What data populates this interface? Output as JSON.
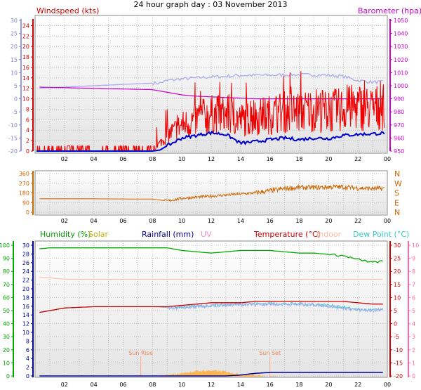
{
  "title": "24 hour graph day : 03 November 2013",
  "colors": {
    "windspeed": "#ee0000",
    "windspeed_avg": "#0000cc",
    "barometer": "#cc00cc",
    "winddir": "#cc6600",
    "humidity": "#00aa00",
    "solar": "#ffaa33",
    "rainfall": "#000099",
    "uv": "#ff99cc",
    "temperature": "#cc0000",
    "indoor": "#ffbb99",
    "dewpoint": "#33cccc",
    "grey_trace": "#aaaaee",
    "panel_bg": "#e4e4e4"
  },
  "time_ticks": [
    "02",
    "04",
    "06",
    "08",
    "10",
    "12",
    "14",
    "16",
    "18",
    "20",
    "22",
    "00"
  ],
  "chart_data": [
    {
      "type": "line",
      "name": "wind_and_pressure",
      "legend_left": "Windspeed (kts)",
      "legend_right": "Barometer (hpa)",
      "x_hours": [
        0,
        8,
        8.5,
        9,
        10,
        11,
        12,
        13,
        14,
        15,
        16,
        17,
        18,
        19,
        20,
        21,
        22,
        23,
        24
      ],
      "y_left_ticks": [
        "0",
        "2",
        "4",
        "6",
        "8",
        "10",
        "12",
        "14",
        "16",
        "18",
        "20",
        "22",
        "24"
      ],
      "y_left_outer_ticks": [
        "-20",
        "-15",
        "-10",
        "-5",
        "0",
        "5",
        "10",
        "15",
        "20",
        "25",
        "30"
      ],
      "y_right_ticks": [
        "950",
        "960",
        "970",
        "980",
        "990",
        "1000",
        "1010",
        "1020",
        "1030",
        "1040",
        "1050"
      ],
      "ylim_left": [
        0,
        25
      ],
      "ylim_right": [
        950,
        1050
      ],
      "series": [
        {
          "name": "Windspeed (kts)",
          "axis": "left",
          "values": [
            0.5,
            0.5,
            1.5,
            3,
            5,
            6,
            7,
            7,
            6,
            6.5,
            7,
            7.5,
            7.5,
            8,
            7.5,
            8,
            8.5,
            8,
            9
          ]
        },
        {
          "name": "Windspeed avg",
          "axis": "left",
          "values": [
            0,
            0,
            0.2,
            1,
            2.5,
            3,
            3.5,
            3.2,
            1.5,
            1.8,
            2.2,
            2.5,
            2.2,
            2.5,
            2.4,
            3,
            3.2,
            3.3,
            3.5
          ]
        },
        {
          "name": "Barometer (hpa)",
          "axis": "right",
          "values": [
            999,
            997,
            996,
            995,
            993,
            992,
            991.5,
            991,
            990.5,
            990,
            990,
            990,
            990,
            990,
            990,
            990,
            990,
            990,
            990
          ]
        },
        {
          "name": "Temperature trace",
          "axis": "left",
          "values": [
            12,
            13,
            13,
            13.5,
            13.8,
            14,
            14.2,
            14.3,
            14.5,
            14.5,
            14.5,
            14.6,
            14.6,
            14.6,
            14.5,
            14.3,
            13.5,
            13.2,
            13.2
          ]
        }
      ]
    },
    {
      "type": "scatter",
      "name": "wind_direction",
      "x_hours": [
        0,
        4,
        8,
        9,
        10,
        11,
        12,
        13,
        14,
        15,
        16,
        17,
        18,
        19,
        20,
        21,
        22,
        23,
        24
      ],
      "values": [
        125,
        125,
        122,
        105,
        130,
        140,
        150,
        160,
        170,
        180,
        200,
        220,
        230,
        230,
        235,
        235,
        225,
        220,
        220
      ],
      "y_ticks": [
        "0",
        "90",
        "180",
        "270",
        "360"
      ],
      "compass": [
        "N",
        "W",
        "S",
        "E",
        "N"
      ],
      "ylim": [
        0,
        360
      ]
    },
    {
      "type": "line",
      "name": "humidity_temperature_rain",
      "legend": [
        "Humidity (%)",
        "Solar",
        "Rainfall (mm)",
        "UV",
        "Temperature (°C)",
        "Indoor",
        "Dew Point (°C)"
      ],
      "sun_labels": [
        "Sun Rise",
        "Sun Set"
      ],
      "sunrise_hour": 7.2,
      "sunset_hour": 16.0,
      "x_hours": [
        0,
        1,
        2,
        4,
        6,
        8,
        9,
        10,
        11,
        12,
        13,
        14,
        15,
        16,
        17,
        18,
        19,
        20,
        21,
        22,
        23,
        24
      ],
      "y_humidity_ticks": [
        "0",
        "10",
        "20",
        "30",
        "40",
        "50",
        "60",
        "70",
        "80",
        "90",
        "100"
      ],
      "y_rain_ticks": [
        "0",
        "2",
        "4",
        "6",
        "8",
        "10",
        "12",
        "14",
        "16",
        "18",
        "20",
        "22",
        "24",
        "26",
        "28",
        "30"
      ],
      "y_temp_ticks": [
        "-20",
        "-15",
        "-10",
        "-5",
        "0",
        "5",
        "10",
        "15",
        "20",
        "25",
        "30"
      ],
      "y_uv_ticks": [
        "0",
        "1",
        "2",
        "3",
        "4",
        "5",
        "6",
        "7",
        "8",
        "9",
        "10"
      ],
      "series": [
        {
          "name": "Humidity (%)",
          "axis": "humidity",
          "values": [
            97,
            98,
            98,
            98,
            98,
            98,
            98,
            96,
            95,
            94,
            95,
            96,
            96,
            96,
            95,
            94,
            94,
            93,
            92,
            89,
            87,
            88
          ]
        },
        {
          "name": "Temperature (°C)",
          "axis": "temperature",
          "values": [
            4,
            5,
            6,
            6.5,
            6.5,
            6.5,
            6.5,
            7,
            7.5,
            8,
            8,
            8,
            8.5,
            8.5,
            8.5,
            8.5,
            8.5,
            8.5,
            8.5,
            8,
            7.5,
            7.5
          ]
        },
        {
          "name": "Dew Point (°C)",
          "axis": "temperature",
          "values": [
            4,
            5,
            6,
            6.5,
            6.5,
            6.5,
            6.2,
            6.4,
            6.6,
            7,
            7.2,
            7.5,
            7.6,
            7.7,
            7.6,
            7.5,
            7.4,
            7,
            6.2,
            5.4,
            5.2,
            5.4
          ]
        },
        {
          "name": "Indoor",
          "axis": "temperature",
          "values": [
            18,
            17.5,
            17,
            17,
            17,
            17,
            17,
            17,
            17,
            17,
            17,
            17,
            17,
            17,
            17,
            17,
            17,
            17,
            17,
            17,
            17,
            17
          ]
        },
        {
          "name": "Rainfall (mm)",
          "axis": "rain",
          "values": [
            0,
            0,
            0,
            0,
            0,
            0,
            0,
            0,
            0,
            0,
            0,
            0.2,
            0.6,
            0.8,
            0.8,
            0.8,
            0.8,
            0.8,
            0.8,
            0.8,
            0.8,
            0.8
          ]
        },
        {
          "name": "Solar",
          "axis": "solar",
          "values": [
            0,
            0,
            0,
            0,
            0,
            0,
            0.2,
            0.6,
            1,
            1.1,
            0.9,
            0.4,
            0.3,
            0,
            0,
            0,
            0,
            0,
            0,
            0,
            0,
            0
          ]
        }
      ]
    }
  ]
}
